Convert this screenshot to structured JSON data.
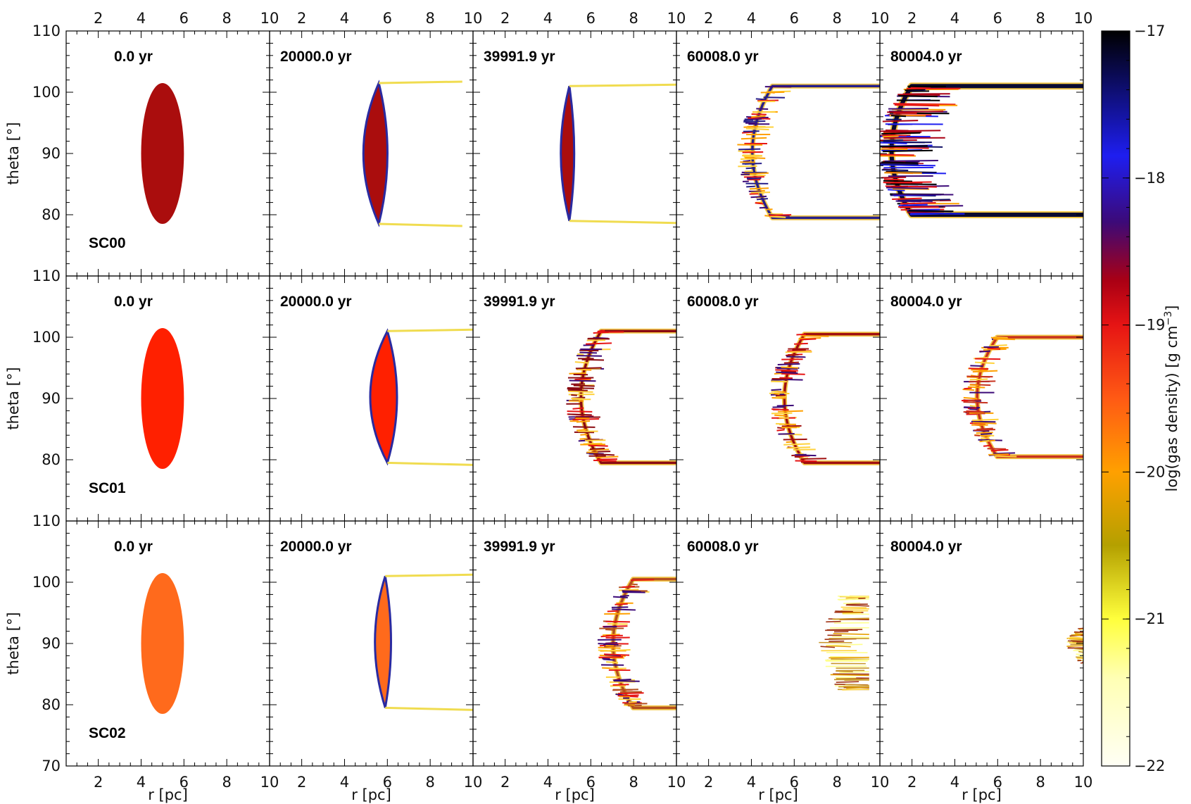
{
  "chart_data": {
    "type": "heatmap",
    "title": "",
    "xlabel": "r [pc]",
    "ylabel": "theta [°]",
    "xlim": [
      0.5,
      10
    ],
    "ylim": [
      70,
      110
    ],
    "x_ticks": [
      "2",
      "4",
      "6",
      "8",
      "10"
    ],
    "y_ticks_top_rows": [
      "80",
      "90",
      "100",
      "110"
    ],
    "y_ticks_bottom_row": [
      "70",
      "80",
      "90",
      "100",
      "110"
    ],
    "times": [
      "0.0 yr",
      "20000.0 yr",
      "39991.9 yr",
      "60008.0 yr",
      "80004.0 yr"
    ],
    "models": [
      "SC00",
      "SC01",
      "SC02"
    ],
    "colorbar": {
      "label": "log(gas density) [g cm",
      "label_exponent": "−3",
      "label_end": "]",
      "range": [
        -22,
        -17
      ],
      "ticks": [
        "−17",
        "−18",
        "−19",
        "−20",
        "−21",
        "−22"
      ],
      "colormap": [
        "#fffff5",
        "#ffff3c",
        "#b4a000",
        "#ffa000",
        "#ff5a14",
        "#e61414",
        "#aa0014",
        "#3c0a78",
        "#1e1ef0",
        "#000000"
      ]
    },
    "panels": [
      {
        "model": "SC00",
        "time": "0.0 yr",
        "state": "initial ellipse",
        "center_r": 5,
        "center_theta": 90,
        "half_width_r": 1,
        "half_height_theta": 11.5,
        "log_density": -19.0,
        "color": "#aa0d0d"
      },
      {
        "model": "SC00",
        "time": "20000.0 yr",
        "state": "compressed cloud + tail",
        "front_r": 4.7,
        "back_r": 5.6,
        "theta_top": 101.5,
        "theta_bottom": 78.5,
        "tail_end_r": 9.5,
        "log_density": -19.0,
        "color": "#aa0d0d"
      },
      {
        "model": "SC00",
        "time": "39991.9 yr",
        "state": "compressed sliver + tail",
        "front_r": 4.5,
        "back_r": 5.0,
        "theta_top": 101,
        "theta_bottom": 79,
        "tail_end_r": 10,
        "log_density": -19.0,
        "color": "#aa0d0d"
      },
      {
        "model": "SC00",
        "time": "60008.0 yr",
        "state": "shell",
        "vertex_r": 3.5,
        "theta_top": 101,
        "theta_bottom": 79.5,
        "tail_end_r": 10,
        "log_density": -18.3,
        "color": "#28208a"
      },
      {
        "model": "SC00",
        "time": "80004.0 yr",
        "state": "dense turbulent shell",
        "vertex_r": 0.5,
        "theta_top": 101,
        "theta_bottom": 80,
        "tail_end_r": 10,
        "log_density": -17.5,
        "color": "#0a0a30"
      },
      {
        "model": "SC01",
        "time": "0.0 yr",
        "state": "initial ellipse",
        "center_r": 5,
        "center_theta": 90,
        "half_width_r": 1,
        "half_height_theta": 11.5,
        "log_density": -19.3,
        "color": "#ff2000"
      },
      {
        "model": "SC01",
        "time": "20000.0 yr",
        "state": "compressed cloud + tail",
        "front_r": 5.0,
        "back_r": 6.0,
        "theta_top": 101,
        "theta_bottom": 79.5,
        "tail_end_r": 10,
        "log_density": -19.3,
        "color": "#ff2000"
      },
      {
        "model": "SC01",
        "time": "39991.9 yr",
        "state": "shell",
        "vertex_r": 5.0,
        "theta_top": 101,
        "theta_bottom": 79.5,
        "tail_end_r": 10,
        "log_density": -19.3,
        "color": "#8a0a12"
      },
      {
        "model": "SC01",
        "time": "60008.0 yr",
        "state": "shell",
        "vertex_r": 5.0,
        "theta_top": 100.5,
        "theta_bottom": 79.5,
        "tail_end_r": 10,
        "log_density": -19.5,
        "color": "#a00f0f"
      },
      {
        "model": "SC01",
        "time": "80004.0 yr",
        "state": "shell",
        "vertex_r": 4.5,
        "theta_top": 100,
        "theta_bottom": 80.5,
        "tail_end_r": 10,
        "log_density": -19.8,
        "color": "#c8321e"
      },
      {
        "model": "SC02",
        "time": "0.0 yr",
        "state": "initial ellipse",
        "center_r": 5,
        "center_theta": 90,
        "half_width_r": 1,
        "half_height_theta": 11.5,
        "log_density": -19.7,
        "color": "#ff6a1c"
      },
      {
        "model": "SC02",
        "time": "20000.0 yr",
        "state": "compressed cloud + tail",
        "front_r": 5.3,
        "back_r": 5.9,
        "theta_top": 101,
        "theta_bottom": 79.5,
        "tail_end_r": 10,
        "log_density": -19.7,
        "color": "#ff6a1c"
      },
      {
        "model": "SC02",
        "time": "39991.9 yr",
        "state": "shell",
        "vertex_r": 6.5,
        "theta_top": 100.5,
        "theta_bottom": 79.5,
        "tail_end_r": 10,
        "log_density": -20.2,
        "color": "#b4501e"
      },
      {
        "model": "SC02",
        "time": "60008.0 yr",
        "state": "fragmented clump",
        "vertex_r": 7.0,
        "theta_top": 98,
        "theta_bottom": 82,
        "tail_end_r": 9.5,
        "log_density": -20.6,
        "color": "#c89628"
      },
      {
        "model": "SC02",
        "time": "80004.0 yr",
        "state": "fragmented clump",
        "vertex_r": 9.0,
        "theta_top": 94,
        "theta_bottom": 86,
        "tail_end_r": 10,
        "log_density": -21.0,
        "color": "#d2b428"
      }
    ]
  }
}
